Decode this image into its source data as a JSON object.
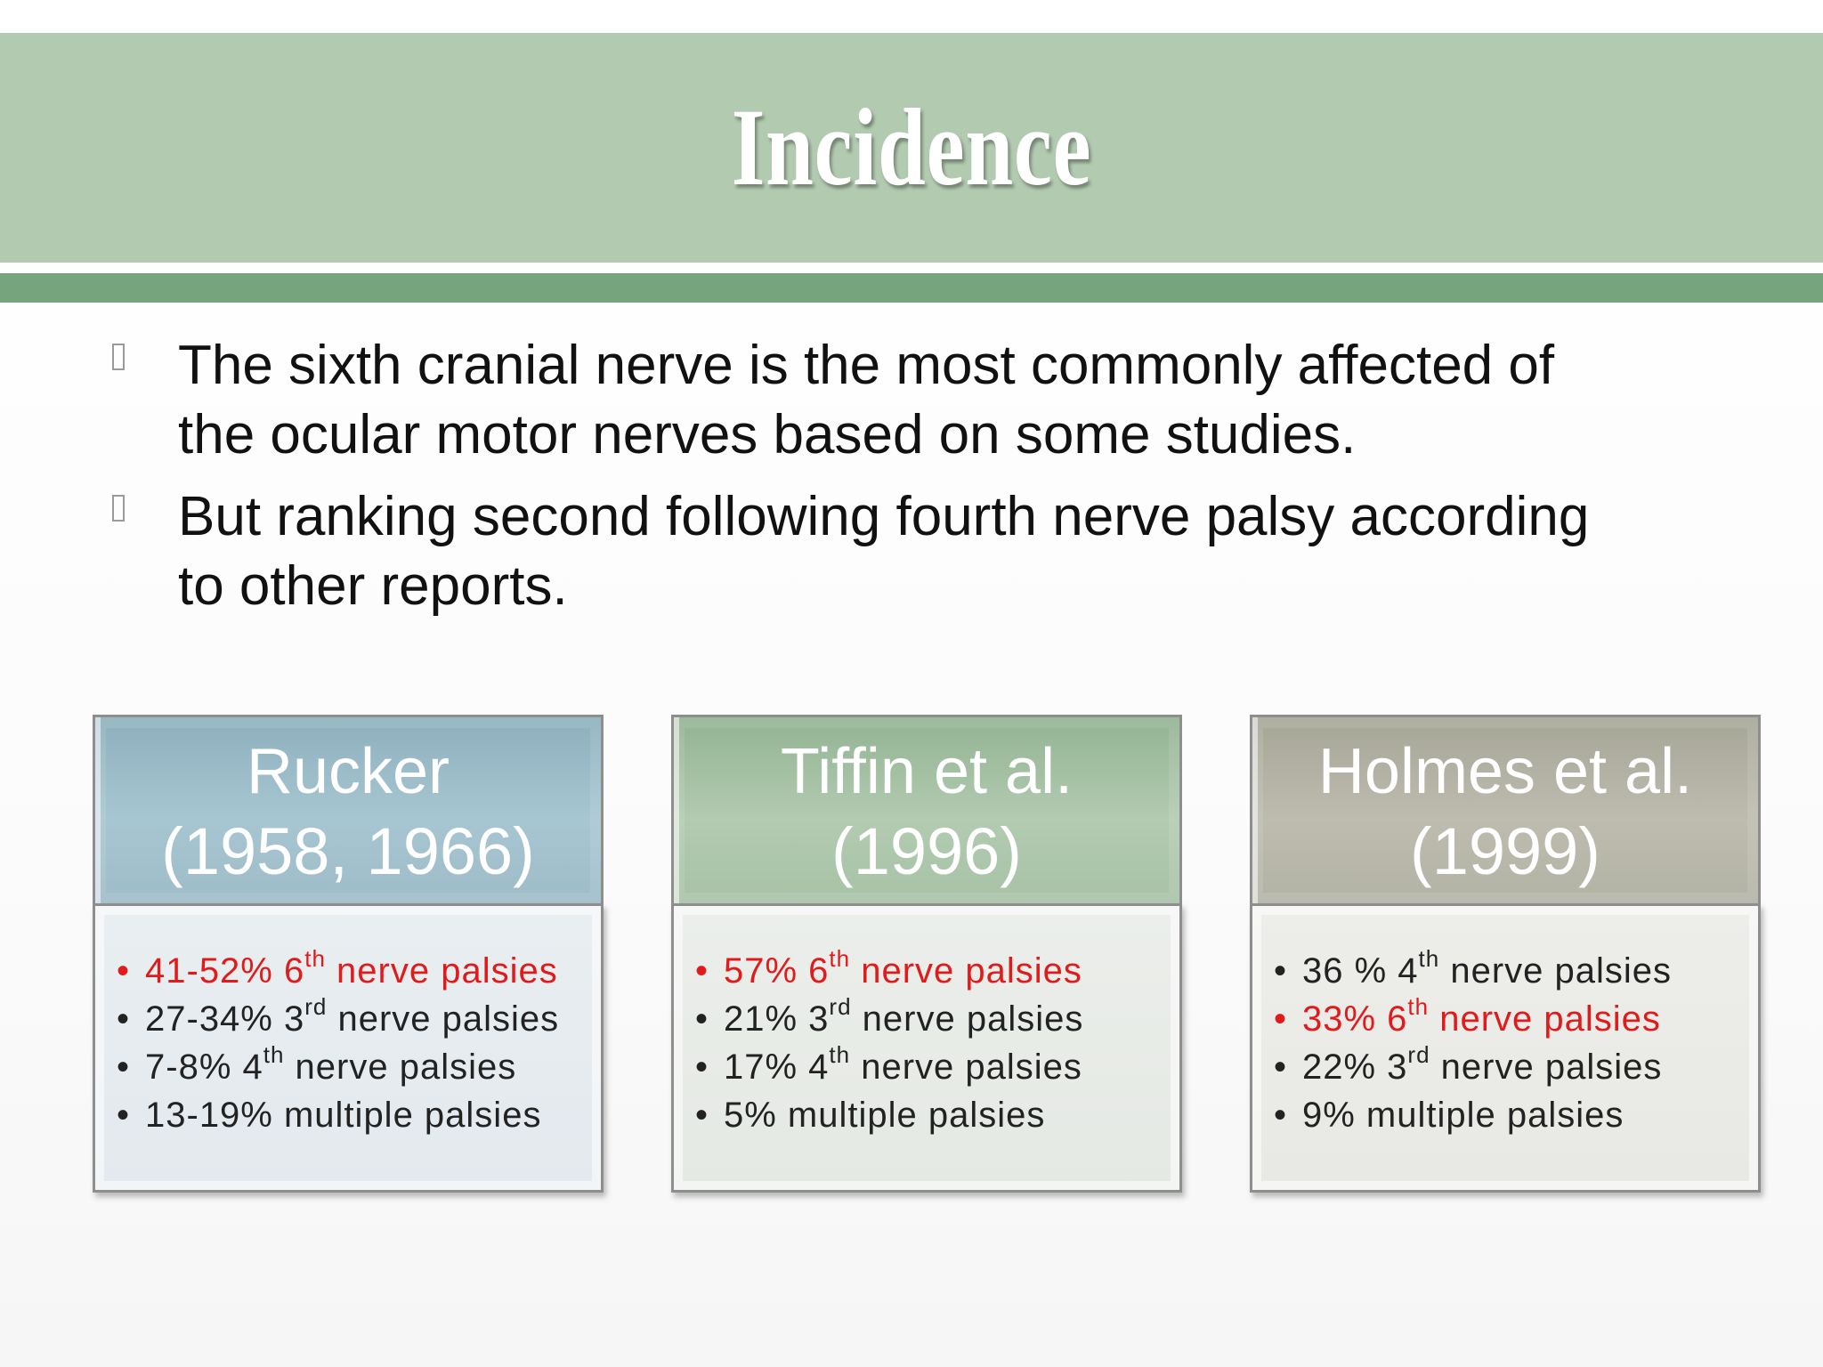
{
  "slide": {
    "title": "Incidence",
    "bullets": [
      {
        "line1": "The sixth cranial nerve is the most commonly affected of",
        "line2": "the ocular motor nerves based on some studies."
      },
      {
        "line1": "But ranking second following fourth nerve palsy according",
        "line2": "to other reports."
      }
    ],
    "panels": [
      {
        "heading_line1": "Rucker",
        "heading_line2": "(1958, 1966)",
        "items": [
          {
            "pre": "41-52% 6",
            "sup": "th",
            "post": " nerve palsies",
            "highlight": true
          },
          {
            "pre": "27-34% 3",
            "sup": "rd",
            "post": " nerve palsies",
            "highlight": false
          },
          {
            "pre": "7-8% 4",
            "sup": "th",
            "post": " nerve palsies",
            "highlight": false
          },
          {
            "pre": "13-19% multiple palsies",
            "sup": "",
            "post": "",
            "highlight": false
          }
        ]
      },
      {
        "heading_line1": "Tiffin et al.",
        "heading_line2": "(1996)",
        "items": [
          {
            "pre": "57% 6",
            "sup": "th",
            "post": " nerve palsies",
            "highlight": true
          },
          {
            "pre": "21% 3",
            "sup": "rd",
            "post": " nerve palsies",
            "highlight": false
          },
          {
            "pre": "17% 4",
            "sup": "th",
            "post": " nerve palsies",
            "highlight": false
          },
          {
            "pre": "5% multiple palsies",
            "sup": "",
            "post": "",
            "highlight": false
          }
        ]
      },
      {
        "heading_line1": "Holmes et al.",
        "heading_line2": "(1999)",
        "items": [
          {
            "pre": "36 % 4",
            "sup": "th",
            "post": " nerve palsies",
            "highlight": false
          },
          {
            "pre": "33% 6",
            "sup": "th",
            "post": " nerve palsies",
            "highlight": true
          },
          {
            "pre": "22% 3",
            "sup": "rd",
            "post": " nerve palsies",
            "highlight": false
          },
          {
            "pre": "9% multiple palsies",
            "sup": "",
            "post": "",
            "highlight": false
          }
        ]
      }
    ],
    "colors": {
      "title_band": "#b2cbb0",
      "separator": "#76a47c",
      "highlight_text": "#e11b1b",
      "panel1_header": "#a7c6d2",
      "panel2_header": "#b2cbb1",
      "panel3_header": "#bdbcaf"
    }
  }
}
